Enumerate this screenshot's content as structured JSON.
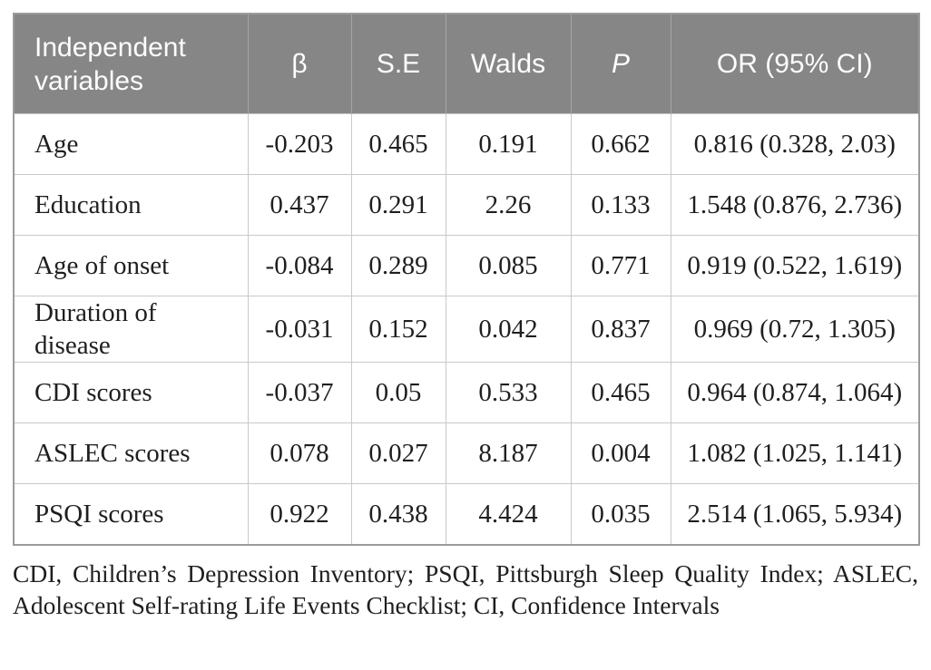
{
  "table": {
    "columns": [
      {
        "label": "Independent variables"
      },
      {
        "label": "β"
      },
      {
        "label": "S.E"
      },
      {
        "label": "Walds"
      },
      {
        "label": "P"
      },
      {
        "label": "OR (95% CI)"
      }
    ],
    "rows": [
      [
        "Age",
        "-0.203",
        "0.465",
        "0.191",
        "0.662",
        "0.816 (0.328, 2.03)"
      ],
      [
        "Education",
        "0.437",
        "0.291",
        "2.26",
        "0.133",
        "1.548 (0.876, 2.736)"
      ],
      [
        "Age of onset",
        "-0.084",
        "0.289",
        "0.085",
        "0.771",
        "0.919 (0.522, 1.619)"
      ],
      [
        "Duration of disease",
        "-0.031",
        "0.152",
        "0.042",
        "0.837",
        "0.969 (0.72, 1.305)"
      ],
      [
        "CDI scores",
        "-0.037",
        "0.05",
        "0.533",
        "0.465",
        "0.964 (0.874, 1.064)"
      ],
      [
        "ASLEC scores",
        "0.078",
        "0.027",
        "8.187",
        "0.004",
        "1.082 (1.025, 1.141)"
      ],
      [
        "PSQI scores",
        "0.922",
        "0.438",
        "4.424",
        "0.035",
        "2.514 (1.065, 5.934)"
      ]
    ],
    "footnote": "CDI, Children’s Depression Inventory; PSQI, Pittsburgh Sleep Quality Index; ASLEC, Adolescent Self-rating Life Events Checklist; CI, Confidence Intervals"
  },
  "colors": {
    "header_bg": "#868686",
    "header_text": "#fdfdfd",
    "header_divider": "#a6a6a6",
    "body_text": "#1f1f1f",
    "grid_line": "#c9c9c9",
    "outer_border": "#9b9b9b",
    "page_bg": "#ffffff"
  }
}
